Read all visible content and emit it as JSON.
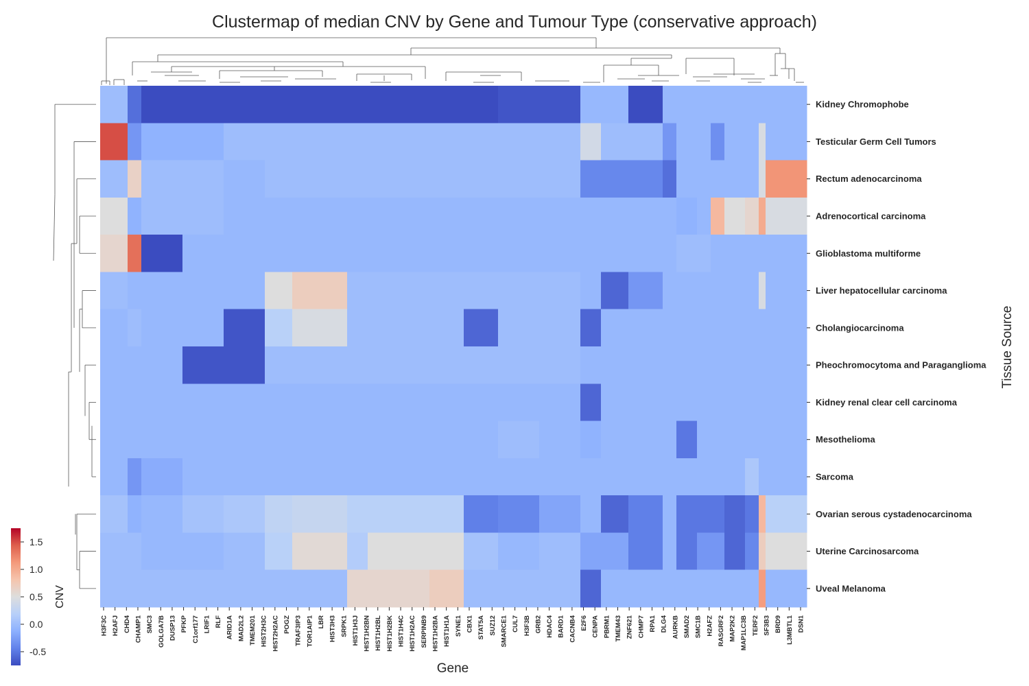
{
  "chart_data": {
    "type": "heatmap",
    "title": "Clustermap of median CNV by Gene and Tumour Type (conservative approach)",
    "xlabel": "Gene",
    "ylabel": "Tissue Source",
    "colorbar_label": "CNV",
    "colorbar_range": [
      -0.75,
      1.75
    ],
    "colorbar_ticks": [
      "-0.5",
      "0.0",
      "0.5",
      "1.0",
      "1.5"
    ],
    "colormap": "coolwarm",
    "rows": [
      "Kidney Chromophobe",
      "Testicular Germ Cell Tumors",
      "Rectum adenocarcinoma",
      "Adrenocortical carcinoma",
      "Glioblastoma multiforme",
      "Liver hepatocellular carcinoma",
      "Cholangiocarcinoma",
      "Pheochromocytoma and Paraganglioma",
      "Kidney renal clear cell carcinoma",
      "Mesothelioma",
      "Sarcoma",
      "Ovarian serous cystadenocarcinoma",
      "Uterine Carcinosarcoma",
      "Uveal Melanoma"
    ],
    "column_labels": [
      "H3F3C",
      "H2AFJ",
      "CHD4",
      "CHAMP1",
      "SMC3",
      "GOLGA7B",
      "DUSP13",
      "PFKP",
      "C1orf177",
      "LRIF1",
      "RLF",
      "ARID1A",
      "MAD2L2",
      "TMEM201",
      "HIST2H3C",
      "HIST2H2AC",
      "POGZ",
      "TRAF3IP3",
      "TOR1AIP1",
      "LBR",
      "HIST3H3",
      "SRPK1",
      "HIST1H3J",
      "HIST1H2BN",
      "HIST1H2BL",
      "HIST1H2BK",
      "HIST1H4C",
      "HIST1H2AC",
      "SERPINB9",
      "HIST1H2BA",
      "HIST1H1A",
      "SYNE1",
      "CBX1",
      "STAT5A",
      "SUZ12",
      "SMARCE1",
      "CUL7",
      "H3F3B",
      "GRB2",
      "HDAC4",
      "BARD1",
      "CACNB4",
      "E2F6",
      "CENPA",
      "PBRM1",
      "TMEM43",
      "ZNF621",
      "CHMP7",
      "RPA1",
      "DLG4",
      "AURKB",
      "SMAD2",
      "SMC1B",
      "H2AFZ",
      "RASGRF2",
      "MAP2K2",
      "MAP1LC3B",
      "TERF2",
      "SF3B3",
      "BRD9",
      "L3MBTL1",
      "DSN1"
    ],
    "column_groups": [
      {
        "start": 0,
        "end": 4,
        "values": [
          0,
          1.5,
          0,
          0.5,
          0.6,
          0,
          -0.05,
          -0.05,
          -0.05,
          -0.05,
          -0.05,
          0.05,
          0,
          0
        ]
      },
      {
        "start": 4,
        "end": 6,
        "values": [
          -0.55,
          -0.3,
          0.65,
          -0.1,
          1.35,
          -0.05,
          0,
          -0.05,
          -0.05,
          -0.05,
          -0.3,
          -0.1,
          0,
          0
        ]
      },
      {
        "start": 6,
        "end": 12,
        "values": [
          -0.75,
          -0.1,
          0,
          0,
          -0.75,
          -0.05,
          -0.05,
          -0.05,
          -0.05,
          -0.05,
          -0.15,
          -0.05,
          -0.05,
          0
        ]
      },
      {
        "start": 12,
        "end": 18,
        "values": [
          -0.75,
          -0.1,
          0,
          0,
          -0.05,
          -0.05,
          -0.05,
          -0.7,
          -0.05,
          -0.05,
          -0.05,
          0.05,
          -0.05,
          0
        ]
      },
      {
        "start": 18,
        "end": 24,
        "values": [
          -0.75,
          0,
          -0.05,
          -0.05,
          -0.05,
          -0.05,
          -0.7,
          -0.7,
          -0.05,
          -0.05,
          -0.05,
          0.1,
          0,
          0
        ]
      },
      {
        "start": 24,
        "end": 28,
        "values": [
          -0.75,
          0,
          0,
          -0.05,
          -0.05,
          0.5,
          0.2,
          0,
          -0.05,
          -0.05,
          -0.05,
          0.25,
          0.2,
          0
        ]
      },
      {
        "start": 28,
        "end": 36,
        "values": [
          -0.75,
          0,
          0,
          -0.05,
          -0.05,
          0.7,
          0.45,
          0,
          -0.05,
          -0.05,
          -0.05,
          0.3,
          0.55,
          0
        ]
      },
      {
        "start": 36,
        "end": 39,
        "values": [
          -0.75,
          0,
          0,
          -0.05,
          -0.05,
          0,
          0,
          0,
          -0.05,
          -0.05,
          -0.05,
          0.2,
          0.15,
          0.6
        ]
      },
      {
        "start": 39,
        "end": 48,
        "values": [
          -0.75,
          0,
          0,
          -0.05,
          -0.05,
          0,
          0,
          0,
          -0.05,
          -0.05,
          -0.05,
          0.2,
          0.5,
          0.6
        ]
      },
      {
        "start": 48,
        "end": 53,
        "values": [
          -0.75,
          0,
          0,
          -0.05,
          -0.05,
          0,
          0,
          0,
          -0.05,
          -0.05,
          -0.05,
          0.2,
          0.5,
          0.7
        ]
      },
      {
        "start": 53,
        "end": 58,
        "values": [
          -0.75,
          0,
          0,
          -0.05,
          -0.05,
          0,
          -0.6,
          0,
          -0.05,
          -0.05,
          -0.05,
          -0.45,
          0.05,
          0
        ]
      },
      {
        "start": 58,
        "end": 64,
        "values": [
          -0.7,
          0,
          0,
          -0.05,
          -0.05,
          0,
          0,
          0,
          -0.05,
          0,
          -0.05,
          -0.4,
          -0.05,
          0
        ]
      },
      {
        "start": 64,
        "end": 70,
        "values": [
          -0.7,
          0,
          0,
          -0.05,
          -0.05,
          0,
          0,
          0,
          -0.05,
          -0.05,
          -0.05,
          -0.2,
          0,
          0
        ]
      },
      {
        "start": 70,
        "end": 73,
        "values": [
          -0.05,
          0.4,
          -0.4,
          -0.05,
          -0.05,
          -0.05,
          -0.6,
          -0.05,
          -0.6,
          -0.1,
          -0.05,
          -0.05,
          -0.2,
          -0.6
        ]
      },
      {
        "start": 73,
        "end": 77,
        "values": [
          -0.05,
          0,
          -0.4,
          -0.05,
          -0.05,
          -0.6,
          -0.05,
          -0.05,
          -0.05,
          -0.05,
          -0.05,
          -0.6,
          -0.2,
          -0.05
        ]
      },
      {
        "start": 77,
        "end": 82,
        "values": [
          -0.75,
          0,
          -0.4,
          -0.05,
          -0.05,
          -0.3,
          -0.05,
          -0.05,
          -0.05,
          -0.05,
          -0.05,
          -0.45,
          -0.45,
          -0.05
        ]
      },
      {
        "start": 82,
        "end": 84,
        "values": [
          -0.05,
          -0.3,
          -0.55,
          -0.05,
          -0.05,
          -0.05,
          -0.05,
          -0.05,
          -0.05,
          -0.05,
          -0.05,
          -0.05,
          -0.05,
          -0.05
        ]
      },
      {
        "start": 84,
        "end": 87,
        "values": [
          -0.05,
          -0.05,
          -0.05,
          -0.1,
          0,
          -0.05,
          -0.05,
          -0.05,
          -0.05,
          -0.5,
          -0.05,
          -0.5,
          -0.5,
          -0.05
        ]
      },
      {
        "start": 87,
        "end": 89,
        "values": [
          -0.05,
          -0.05,
          -0.05,
          -0.05,
          0,
          -0.05,
          -0.05,
          -0.05,
          -0.05,
          -0.05,
          -0.05,
          -0.5,
          -0.3,
          -0.05
        ]
      },
      {
        "start": 89,
        "end": 91,
        "values": [
          -0.05,
          -0.35,
          -0.05,
          0.9,
          -0.05,
          -0.05,
          -0.05,
          -0.05,
          -0.05,
          -0.05,
          -0.05,
          -0.5,
          -0.3,
          -0.05
        ]
      },
      {
        "start": 91,
        "end": 94,
        "values": [
          -0.05,
          -0.05,
          -0.05,
          0.5,
          -0.05,
          -0.05,
          -0.05,
          -0.05,
          -0.05,
          -0.05,
          -0.05,
          -0.6,
          -0.6,
          -0.05
        ]
      },
      {
        "start": 94,
        "end": 96,
        "values": [
          -0.05,
          -0.05,
          -0.05,
          0.6,
          -0.05,
          -0.05,
          -0.05,
          -0.05,
          -0.05,
          -0.05,
          0.1,
          -0.5,
          -0.4,
          -0.05
        ]
      },
      {
        "start": 96,
        "end": 97,
        "values": [
          -0.05,
          0.45,
          0.45,
          1.0,
          -0.05,
          0.45,
          -0.05,
          -0.05,
          -0.05,
          -0.05,
          -0.05,
          0.9,
          0.7,
          1.1
        ]
      },
      {
        "start": 97,
        "end": 103,
        "values": [
          -0.05,
          -0.05,
          1.15,
          0.45,
          -0.05,
          -0.05,
          -0.05,
          -0.05,
          -0.05,
          -0.05,
          -0.05,
          0.2,
          0.5,
          -0.05
        ]
      }
    ]
  }
}
